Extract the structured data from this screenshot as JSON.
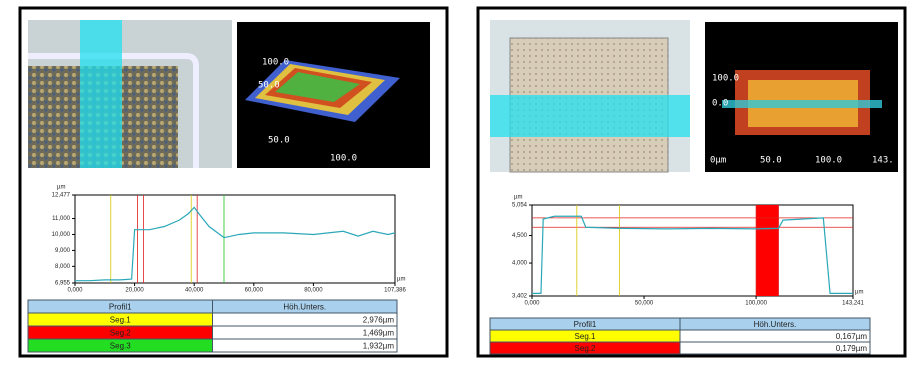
{
  "chart_data": [
    {
      "type": "line",
      "y_unit": "µm",
      "x_unit": "µm",
      "color": "#2aa8b8",
      "x": [
        0,
        5,
        10,
        15,
        19,
        20,
        25,
        30,
        35,
        38,
        40,
        42,
        45,
        50,
        55,
        60,
        70,
        80,
        90,
        95,
        100,
        105,
        107.386
      ],
      "values": [
        7.1,
        7.1,
        7.15,
        7.15,
        7.2,
        10.3,
        10.3,
        10.5,
        10.9,
        11.3,
        11.7,
        11.2,
        10.5,
        9.8,
        10.0,
        10.1,
        10.1,
        10.0,
        10.2,
        9.9,
        10.2,
        10.0,
        10.1
      ],
      "xlim": [
        0,
        107.386
      ],
      "ylim": [
        6.955,
        12.477
      ],
      "xticks": [
        {
          "value": 0,
          "label": "0,000"
        },
        {
          "value": 20,
          "label": "20,000"
        },
        {
          "value": 40,
          "label": "40,000"
        },
        {
          "value": 60,
          "label": "60,000"
        },
        {
          "value": 80,
          "label": "80,000"
        },
        {
          "value": 107.386,
          "label": "107,386"
        }
      ],
      "yticks": [
        {
          "value": 6.955,
          "label": "6,955"
        },
        {
          "value": 8,
          "label": "8,000"
        },
        {
          "value": 9,
          "label": "9,000"
        },
        {
          "value": 10,
          "label": "10,000"
        },
        {
          "value": 11,
          "label": "11,000"
        },
        {
          "value": 12.477,
          "label": "12,477"
        }
      ],
      "markers": [
        {
          "x": 12,
          "color": "#d8c800"
        },
        {
          "x": 21,
          "color": "#e02020"
        },
        {
          "x": 23,
          "color": "#e02020"
        },
        {
          "x": 39,
          "color": "#d8c800"
        },
        {
          "x": 41,
          "color": "#e02020"
        },
        {
          "x": 50,
          "color": "#20c020"
        }
      ]
    },
    {
      "type": "line",
      "y_unit": "µm",
      "x_unit": "µm",
      "color": "#2aa8b8",
      "x": [
        0,
        4,
        5,
        10,
        22,
        24,
        40,
        60,
        80,
        100,
        110,
        112,
        130,
        133,
        143.241
      ],
      "values": [
        3.45,
        3.45,
        4.8,
        4.85,
        4.85,
        4.65,
        4.63,
        4.62,
        4.63,
        4.62,
        4.63,
        4.78,
        4.82,
        3.45,
        3.45
      ],
      "xlim": [
        0,
        143.241
      ],
      "ylim": [
        3.402,
        5.054
      ],
      "xticks": [
        {
          "value": 0,
          "label": "0,000"
        },
        {
          "value": 50,
          "label": "50,000"
        },
        {
          "value": 100,
          "label": "100,000"
        },
        {
          "value": 143.241,
          "label": "143,241"
        }
      ],
      "yticks": [
        {
          "value": 3.402,
          "label": "3,402"
        },
        {
          "value": 4,
          "label": "4,000"
        },
        {
          "value": 4.5,
          "label": "4,500"
        },
        {
          "value": 5.054,
          "label": "5,054"
        }
      ],
      "markers": [
        {
          "x": 20,
          "color": "#d8c800"
        },
        {
          "x": 39,
          "color": "#d8c800"
        },
        {
          "x": 100,
          "color": "#e02020"
        },
        {
          "x": 110,
          "color": "#e02020"
        }
      ],
      "hlines": [
        {
          "y": 4.82,
          "color": "#e02020"
        },
        {
          "y": 4.65,
          "color": "#e02020"
        }
      ],
      "highlight": {
        "x": [
          100,
          110
        ],
        "color": "#ff0000"
      }
    }
  ],
  "panels": [
    {
      "view3d_labels": [
        "100.0",
        "50.0",
        "50.0",
        "100.0"
      ],
      "table": {
        "header": [
          "Profil1",
          "Höh.Unters."
        ],
        "rows": [
          [
            "Seg.1",
            "2,976µm"
          ],
          [
            "Seg.2",
            "1,469µm"
          ],
          [
            "Seg.3",
            "1,932µm"
          ]
        ],
        "row_colors": [
          "#ffff00",
          "#ff0000",
          "#22dd22"
        ]
      }
    },
    {
      "view3d_labels": [
        "100.0",
        "0.0",
        "0µm",
        "50.0",
        "100.0",
        "143."
      ],
      "table": {
        "header": [
          "Profil1",
          "Höh.Unters."
        ],
        "rows": [
          [
            "Seg.1",
            "0,167µm"
          ],
          [
            "Seg.2",
            "0,179µm"
          ]
        ],
        "row_colors": [
          "#ffff00",
          "#ff0000"
        ]
      }
    }
  ]
}
